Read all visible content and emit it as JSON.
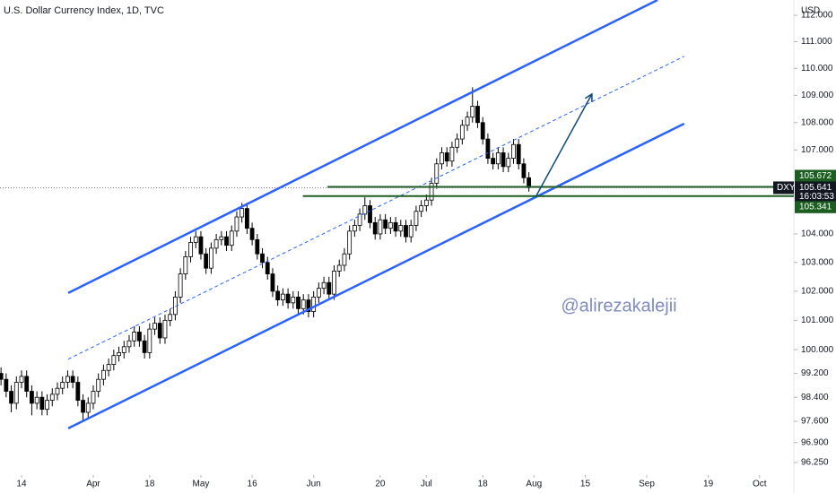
{
  "chart_data": {
    "type": "candlestick",
    "title": "U.S. Dollar Currency Index, 1D, TVC",
    "currency": "USD",
    "watermark": "@alirezakalejii",
    "log": true,
    "xlim": [
      -4.2,
      150.7
    ],
    "ylim": [
      95.84,
      112.58
    ],
    "xticks": [
      {
        "value": 0,
        "label": "14"
      },
      {
        "value": 14,
        "label": "Apr"
      },
      {
        "value": 25,
        "label": "18"
      },
      {
        "value": 35,
        "label": "May"
      },
      {
        "value": 45,
        "label": "16"
      },
      {
        "value": 57,
        "label": "Jun"
      },
      {
        "value": 70,
        "label": "20"
      },
      {
        "value": 79,
        "label": "Jul"
      },
      {
        "value": 90,
        "label": "18"
      },
      {
        "value": 100,
        "label": "Aug"
      },
      {
        "value": 110,
        "label": "15"
      },
      {
        "value": 122,
        "label": "Sep"
      },
      {
        "value": 134,
        "label": "19"
      },
      {
        "value": 144,
        "label": "Oct"
      }
    ],
    "yticks": [
      {
        "value": 112,
        "label": "112.000"
      },
      {
        "value": 111,
        "label": "111.000"
      },
      {
        "value": 110,
        "label": "110.000"
      },
      {
        "value": 109,
        "label": "109.000"
      },
      {
        "value": 108,
        "label": "108.000"
      },
      {
        "value": 107,
        "label": "107.000"
      },
      {
        "value": 104,
        "label": "104.000"
      },
      {
        "value": 103,
        "label": "103.000"
      },
      {
        "value": 102,
        "label": "102.000"
      },
      {
        "value": 101,
        "label": "101.000"
      },
      {
        "value": 100,
        "label": "100.000"
      },
      {
        "value": 99.2,
        "label": "99.200"
      },
      {
        "value": 98.4,
        "label": "98.400"
      },
      {
        "value": 97.6,
        "label": "97.600"
      },
      {
        "value": 96.9,
        "label": "96.900"
      },
      {
        "value": 96.25,
        "label": "96.250"
      }
    ],
    "x": [
      -4,
      -3,
      -2,
      -1,
      0,
      1,
      2,
      3,
      4,
      5,
      6,
      7,
      8,
      9,
      10,
      11,
      12,
      13,
      14,
      15,
      16,
      17,
      18,
      19,
      20,
      21,
      22,
      23,
      24,
      25,
      26,
      27,
      28,
      29,
      30,
      31,
      32,
      33,
      34,
      35,
      36,
      37,
      38,
      39,
      40,
      41,
      42,
      43,
      44,
      45,
      46,
      47,
      48,
      49,
      50,
      51,
      52,
      53,
      54,
      55,
      56,
      57,
      58,
      59,
      60,
      61,
      62,
      63,
      64,
      65,
      66,
      67,
      68,
      69,
      70,
      71,
      72,
      73,
      74,
      75,
      76,
      77,
      78,
      79,
      80,
      81,
      82,
      83,
      84,
      85,
      86,
      87,
      88,
      89,
      90,
      91,
      92,
      93,
      94,
      95,
      96,
      97,
      98,
      99
    ],
    "ohlc": [
      [
        99.2,
        99.4,
        98.8,
        99.0
      ],
      [
        99.0,
        99.2,
        98.4,
        98.6
      ],
      [
        98.6,
        98.8,
        97.9,
        98.2
      ],
      [
        98.2,
        99.1,
        98.0,
        98.9
      ],
      [
        98.9,
        99.3,
        98.7,
        99.1
      ],
      [
        99.1,
        99.3,
        98.4,
        98.6
      ],
      [
        98.6,
        98.8,
        97.8,
        98.2
      ],
      [
        98.2,
        98.6,
        98.0,
        98.4
      ],
      [
        98.4,
        98.6,
        97.8,
        98.0
      ],
      [
        98.0,
        98.5,
        97.8,
        98.3
      ],
      [
        98.3,
        98.7,
        98.1,
        98.5
      ],
      [
        98.5,
        98.9,
        98.3,
        98.7
      ],
      [
        98.7,
        99.1,
        98.5,
        98.9
      ],
      [
        98.9,
        99.3,
        98.7,
        99.1
      ],
      [
        99.1,
        99.3,
        98.7,
        98.9
      ],
      [
        98.9,
        99.1,
        98.1,
        98.3
      ],
      [
        98.3,
        98.5,
        97.6,
        97.9
      ],
      [
        97.9,
        98.4,
        97.7,
        98.2
      ],
      [
        98.2,
        98.8,
        98.0,
        98.6
      ],
      [
        98.6,
        99.2,
        98.4,
        99.0
      ],
      [
        99.0,
        99.5,
        98.8,
        99.3
      ],
      [
        99.3,
        99.7,
        99.1,
        99.5
      ],
      [
        99.5,
        100.0,
        99.3,
        99.8
      ],
      [
        99.8,
        100.1,
        99.6,
        99.9
      ],
      [
        99.9,
        100.3,
        99.7,
        100.1
      ],
      [
        100.1,
        100.5,
        99.9,
        100.3
      ],
      [
        100.3,
        100.8,
        100.1,
        100.6
      ],
      [
        100.6,
        100.8,
        100.1,
        100.3
      ],
      [
        100.3,
        100.5,
        99.7,
        99.9
      ],
      [
        99.9,
        100.9,
        99.7,
        100.7
      ],
      [
        100.7,
        101.1,
        100.5,
        100.9
      ],
      [
        100.9,
        101.1,
        100.2,
        100.4
      ],
      [
        100.4,
        101.2,
        100.2,
        101.0
      ],
      [
        101.0,
        101.4,
        100.8,
        101.2
      ],
      [
        101.2,
        102.0,
        101.0,
        101.8
      ],
      [
        101.8,
        102.8,
        101.6,
        102.6
      ],
      [
        102.6,
        103.4,
        102.4,
        103.2
      ],
      [
        103.2,
        103.9,
        103.0,
        103.7
      ],
      [
        103.7,
        104.1,
        103.5,
        103.9
      ],
      [
        103.9,
        104.1,
        103.1,
        103.3
      ],
      [
        103.3,
        103.5,
        102.6,
        102.8
      ],
      [
        102.8,
        103.7,
        102.6,
        103.5
      ],
      [
        103.5,
        104.0,
        103.3,
        103.8
      ],
      [
        103.8,
        104.1,
        103.6,
        103.9
      ],
      [
        103.9,
        104.1,
        103.4,
        103.6
      ],
      [
        103.6,
        104.3,
        103.4,
        104.1
      ],
      [
        104.1,
        104.8,
        103.9,
        104.6
      ],
      [
        104.6,
        105.1,
        104.4,
        104.9
      ],
      [
        104.9,
        105.1,
        104.0,
        104.2
      ],
      [
        104.2,
        104.4,
        103.6,
        103.8
      ],
      [
        103.8,
        104.0,
        103.1,
        103.3
      ],
      [
        103.3,
        103.5,
        102.8,
        103.0
      ],
      [
        103.0,
        103.2,
        102.4,
        102.6
      ],
      [
        102.6,
        102.8,
        101.8,
        102.0
      ],
      [
        102.0,
        102.2,
        101.5,
        101.7
      ],
      [
        101.7,
        102.1,
        101.5,
        101.9
      ],
      [
        101.9,
        102.1,
        101.4,
        101.6
      ],
      [
        101.6,
        102.0,
        101.4,
        101.8
      ],
      [
        101.8,
        102.0,
        101.2,
        101.4
      ],
      [
        101.4,
        101.9,
        101.2,
        101.7
      ],
      [
        101.7,
        101.9,
        101.1,
        101.3
      ],
      [
        101.3,
        102.0,
        101.1,
        101.8
      ],
      [
        101.8,
        102.3,
        101.6,
        102.1
      ],
      [
        102.1,
        102.5,
        101.9,
        102.3
      ],
      [
        102.3,
        102.5,
        101.7,
        101.9
      ],
      [
        101.9,
        102.9,
        101.7,
        102.7
      ],
      [
        102.7,
        103.1,
        102.5,
        102.9
      ],
      [
        102.9,
        103.5,
        102.7,
        103.3
      ],
      [
        103.3,
        104.3,
        103.1,
        104.1
      ],
      [
        104.1,
        104.5,
        103.9,
        104.3
      ],
      [
        104.3,
        104.9,
        104.1,
        104.7
      ],
      [
        104.7,
        105.3,
        104.5,
        105.0
      ],
      [
        105.0,
        105.2,
        104.2,
        104.4
      ],
      [
        104.4,
        104.6,
        103.8,
        104.0
      ],
      [
        104.0,
        104.7,
        103.8,
        104.5
      ],
      [
        104.5,
        104.7,
        104.0,
        104.2
      ],
      [
        104.2,
        104.6,
        104.0,
        104.4
      ],
      [
        104.4,
        104.6,
        103.9,
        104.1
      ],
      [
        104.1,
        104.5,
        103.9,
        104.3
      ],
      [
        104.3,
        104.5,
        103.7,
        103.9
      ],
      [
        103.9,
        104.5,
        103.7,
        104.3
      ],
      [
        104.3,
        105.0,
        104.1,
        104.8
      ],
      [
        104.8,
        105.2,
        104.6,
        105.0
      ],
      [
        105.0,
        105.4,
        104.8,
        105.2
      ],
      [
        105.2,
        106.0,
        105.0,
        105.8
      ],
      [
        105.8,
        106.7,
        105.6,
        106.5
      ],
      [
        106.5,
        107.1,
        106.3,
        106.9
      ],
      [
        106.9,
        107.1,
        106.4,
        106.6
      ],
      [
        106.6,
        107.3,
        106.4,
        107.1
      ],
      [
        107.1,
        107.6,
        106.9,
        107.4
      ],
      [
        107.4,
        108.1,
        107.2,
        107.9
      ],
      [
        107.9,
        108.4,
        107.7,
        108.2
      ],
      [
        108.2,
        109.3,
        108.0,
        108.6
      ],
      [
        108.6,
        108.8,
        107.8,
        108.0
      ],
      [
        108.0,
        108.2,
        107.2,
        107.4
      ],
      [
        107.4,
        107.6,
        106.5,
        106.7
      ],
      [
        106.7,
        106.9,
        106.3,
        106.5
      ],
      [
        106.5,
        107.1,
        106.3,
        106.9
      ],
      [
        106.9,
        107.1,
        106.2,
        106.4
      ],
      [
        106.4,
        106.9,
        106.2,
        106.7
      ],
      [
        106.7,
        107.4,
        106.5,
        107.2
      ],
      [
        107.2,
        107.4,
        106.3,
        106.5
      ],
      [
        106.5,
        106.7,
        105.8,
        106.0
      ],
      [
        106.0,
        106.2,
        105.5,
        105.64
      ]
    ],
    "lines": [
      {
        "x": [
          9.1,
          124.1
        ],
        "y": [
          101.94,
          112.58
        ],
        "color": "#2962ff",
        "style": "solid"
      },
      {
        "x": [
          9.1,
          129.3
        ],
        "y": [
          97.37,
          107.96
        ],
        "color": "#2962ff",
        "style": "solid"
      },
      {
        "x": [
          9.1,
          129.3
        ],
        "y": [
          99.68,
          110.45
        ],
        "color": "#2962ff",
        "style": "dashed"
      }
    ],
    "arrow": {
      "x": [
        100.4,
        111.3
      ],
      "y": [
        105.34,
        109.05
      ],
      "color": "#0d4a7a"
    },
    "levels": [
      {
        "value": 105.672,
        "x_start": 59.7,
        "color": "#1b5e20"
      },
      {
        "value": 105.341,
        "x_start": 54.9,
        "color": "#1b5e20"
      }
    ],
    "last_price": {
      "symbol": "DXY",
      "value": 105.641,
      "countdown": "16:03:53"
    }
  }
}
